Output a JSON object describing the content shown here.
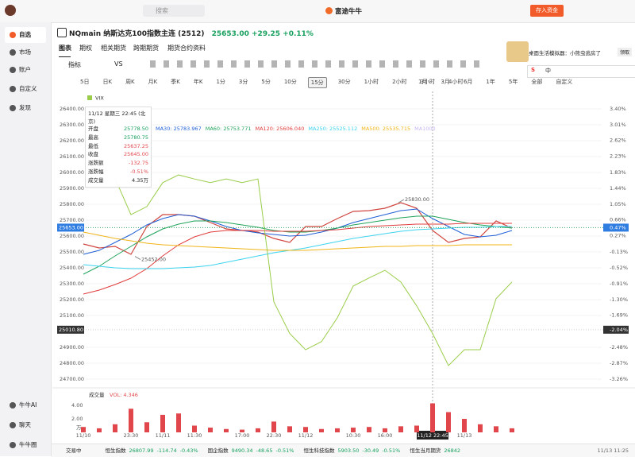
{
  "topbar": {
    "search": "搜索",
    "brand": "富途牛牛",
    "deposit": "存入资金"
  },
  "sidebar": {
    "items": [
      "自选",
      "市场",
      "账户",
      "自定义",
      "发现"
    ],
    "bottom": [
      "牛牛AI",
      "聊天",
      "牛牛圈"
    ]
  },
  "header": {
    "symbol": "NQmain 纳斯达克100指数主连 (2512)",
    "price": "25653.00",
    "change": "+29.25",
    "change_pct": "+0.11%"
  },
  "promo": {
    "text": "桌面生活模拟器：小熊虫逃房了",
    "button": "领取",
    "ime": "中"
  },
  "tabs": [
    "图表",
    "期权",
    "相关期货",
    "跨期期货",
    "期货合约资料"
  ],
  "toolbar": {
    "indicator": "指标",
    "vs": "VS"
  },
  "periods": [
    "5日",
    "日K",
    "周K",
    "月K",
    "季K",
    "年K",
    "1分",
    "3分",
    "5分",
    "10分",
    "15分",
    "30分",
    "1小时",
    "2小时",
    "3小时",
    "4小时",
    "1月",
    "3月",
    "6月",
    "1年",
    "5年",
    "全部",
    "自定义"
  ],
  "selected_period": "15分",
  "tooltip": {
    "date": "11/12 星期三 22:45 (北京)",
    "rows": [
      [
        "开盘",
        "25778.50"
      ],
      [
        "最高",
        "25780.75"
      ],
      [
        "最低",
        "25637.25"
      ],
      [
        "收盘",
        "25645.00"
      ],
      [
        "涨跌额",
        "-132.75"
      ],
      [
        "涨跌幅",
        "-0.51%"
      ],
      [
        "成交量",
        "4.35万"
      ]
    ]
  },
  "chart_data": [
    {
      "type": "line",
      "categories": [
        "11/10",
        null,
        null,
        "23:30",
        null,
        "11/11",
        null,
        "11:30",
        null,
        null,
        "17:00",
        null,
        "22:30",
        null,
        "11/12",
        null,
        null,
        "10:30",
        null,
        "16:00",
        null,
        null,
        "11/12 22:45",
        null,
        "11/13",
        null,
        null,
        null
      ],
      "series": [
        {
          "color": "#d0453f",
          "values": [
            25550,
            25525,
            25535,
            25485,
            25660,
            25735,
            25735,
            25725,
            25685,
            25645,
            25635,
            25625,
            25585,
            25560,
            25660,
            25660,
            25710,
            25755,
            25760,
            25775,
            25810,
            25775,
            25635,
            25560,
            25585,
            25595,
            25695,
            25650
          ]
        },
        {
          "name": "MA30: 25783.967",
          "color": "#1f5fd6",
          "values": [
            25485,
            25510,
            25560,
            25610,
            25670,
            25710,
            25735,
            25725,
            25695,
            25660,
            25635,
            25620,
            25610,
            25600,
            25605,
            25625,
            25650,
            25685,
            25710,
            25735,
            25760,
            25770,
            25710,
            25660,
            25610,
            25595,
            25605,
            25635
          ]
        },
        {
          "name": "MA60: 25753.771",
          "color": "#1fa35a",
          "values": [
            25360,
            25410,
            25475,
            25535,
            25595,
            25645,
            25675,
            25695,
            25695,
            25685,
            25670,
            25655,
            25635,
            25625,
            25625,
            25635,
            25650,
            25670,
            25685,
            25700,
            25715,
            25725,
            25725,
            25705,
            25685,
            25670,
            25660,
            25650
          ]
        },
        {
          "name": "MA120: 25606.040",
          "color": "#e03c3c",
          "values": [
            25235,
            25260,
            25295,
            25335,
            25395,
            25475,
            25545,
            25595,
            25625,
            25635,
            25635,
            25635,
            25630,
            25630,
            25630,
            25635,
            25640,
            25650,
            25660,
            25665,
            25670,
            25675,
            25675,
            25675,
            25680,
            25680,
            25680,
            25680
          ]
        },
        {
          "name": "MA250: 25525.112",
          "color": "#3cd3ef",
          "values": [
            25420,
            25410,
            25400,
            25395,
            25395,
            25395,
            25400,
            25405,
            25415,
            25435,
            25455,
            25475,
            25495,
            25510,
            25525,
            25545,
            25565,
            25585,
            25600,
            25615,
            25630,
            25640,
            25645,
            25650,
            25655,
            25655,
            25660,
            25660
          ]
        },
        {
          "name": "MA500: 25535.715",
          "color": "#f0b416",
          "values": [
            25625,
            25605,
            25585,
            25570,
            25555,
            25545,
            25540,
            25535,
            25530,
            25525,
            25520,
            25515,
            25510,
            25510,
            25510,
            25515,
            25520,
            25525,
            25530,
            25535,
            25535,
            25540,
            25540,
            25540,
            25545,
            25545,
            25545,
            25545
          ]
        },
        {
          "name": "VIX",
          "color": "#9acd4a",
          "axis": "y2",
          "values": [
            null,
            null,
            1.68,
            0.79,
            0.99,
            1.58,
            1.77,
            1.67,
            1.58,
            1.67,
            1.58,
            1.67,
            -1.36,
            -2.14,
            -2.54,
            -2.34,
            -1.75,
            -0.97,
            -0.77,
            -0.58,
            -0.87,
            -1.46,
            -2.14,
            -2.93,
            -2.54,
            -2.54,
            -1.28,
            -0.87
          ]
        }
      ],
      "extra_legend": [
        {
          "name": "MA1000",
          "color": "#c9b8f0"
        }
      ],
      "ylim": [
        24650,
        26500
      ],
      "yticks": [
        {
          "value": 26400,
          "label": "26400.00"
        },
        {
          "value": 26300,
          "label": "26300.00"
        },
        {
          "value": 26200,
          "label": "26200.00"
        },
        {
          "value": 26100,
          "label": "26100.00"
        },
        {
          "value": 26000,
          "label": "26000.00"
        },
        {
          "value": 25900,
          "label": "25900.00"
        },
        {
          "value": 25800,
          "label": "25800.00"
        },
        {
          "value": 25700,
          "label": "25700.00"
        },
        {
          "value": 25600,
          "label": "25600.00"
        },
        {
          "value": 25500,
          "label": "25500.00"
        },
        {
          "value": 25400,
          "label": "25400.00"
        },
        {
          "value": 25300,
          "label": "25300.00"
        },
        {
          "value": 25200,
          "label": "25200.00"
        },
        {
          "value": 25100,
          "label": "25100.00"
        },
        {
          "value": 24900,
          "label": "24900.00"
        },
        {
          "value": 24800,
          "label": "24800.00"
        },
        {
          "value": 24700,
          "label": "24700.00"
        }
      ],
      "y2lim": [
        -3.46,
        3.79
      ],
      "y2ticks": [
        {
          "value": 3.4,
          "label": "3.40%"
        },
        {
          "value": 3.01,
          "label": "3.01%"
        },
        {
          "value": 2.62,
          "label": "2.62%"
        },
        {
          "value": 2.23,
          "label": "2.23%"
        },
        {
          "value": 1.83,
          "label": "1.83%"
        },
        {
          "value": 1.44,
          "label": "1.44%"
        },
        {
          "value": 1.05,
          "label": "1.05%"
        },
        {
          "value": 0.66,
          "label": "0.66%"
        },
        {
          "value": 0.27,
          "label": "0.27%"
        },
        {
          "value": -0.13,
          "label": "-0.13%"
        },
        {
          "value": -0.52,
          "label": "-0.52%"
        },
        {
          "value": -0.91,
          "label": "-0.91%"
        },
        {
          "value": -1.3,
          "label": "-1.30%"
        },
        {
          "value": -1.69,
          "label": "-1.69%"
        },
        {
          "value": -2.48,
          "label": "-2.48%"
        },
        {
          "value": -2.87,
          "label": "-2.87%"
        },
        {
          "value": -3.26,
          "label": "-3.26%"
        }
      ],
      "markers": [
        {
          "value": 25653.0,
          "label": "25653.00",
          "y2_label": "0.47%",
          "color": "#2f7de1"
        },
        {
          "value": 25010.8,
          "label": "25010.80",
          "y2_label": "-2.04%",
          "color": "#333333"
        }
      ],
      "annotations": [
        {
          "value": 25830,
          "label": "25830.00"
        },
        {
          "value": 25452,
          "label": "25452.00"
        }
      ]
    },
    {
      "type": "bar",
      "title": "成交量",
      "subtitle": "VOL: 4.346",
      "color": "#e0464b",
      "unit": "万",
      "values": [
        0.8,
        0.6,
        1.2,
        3.5,
        1.5,
        2.6,
        2.8,
        1.0,
        0.7,
        0.5,
        0.4,
        0.6,
        1.6,
        0.9,
        0.8,
        0.5,
        0.6,
        0.7,
        0.8,
        0.6,
        0.9,
        1.0,
        4.3,
        3.0,
        2.0,
        1.2,
        0.9,
        0.6
      ],
      "ylim": [
        0,
        4.9
      ],
      "yticks": [
        {
          "value": 2,
          "label": "2.00"
        },
        {
          "value": 4,
          "label": "4.00"
        }
      ]
    }
  ],
  "ticker": {
    "status": "交易中",
    "items": [
      [
        "恒生指数",
        "26807.99",
        "-114.74",
        "-0.43%"
      ],
      [
        "国企指数",
        "9490.34",
        "-48.65",
        "-0.51%"
      ],
      [
        "恒生科技指数",
        "5903.50",
        "-30.49",
        "-0.51%"
      ],
      [
        "恒生当月期货",
        "26842",
        "",
        ""
      ]
    ],
    "time": "11/13 11:25"
  }
}
